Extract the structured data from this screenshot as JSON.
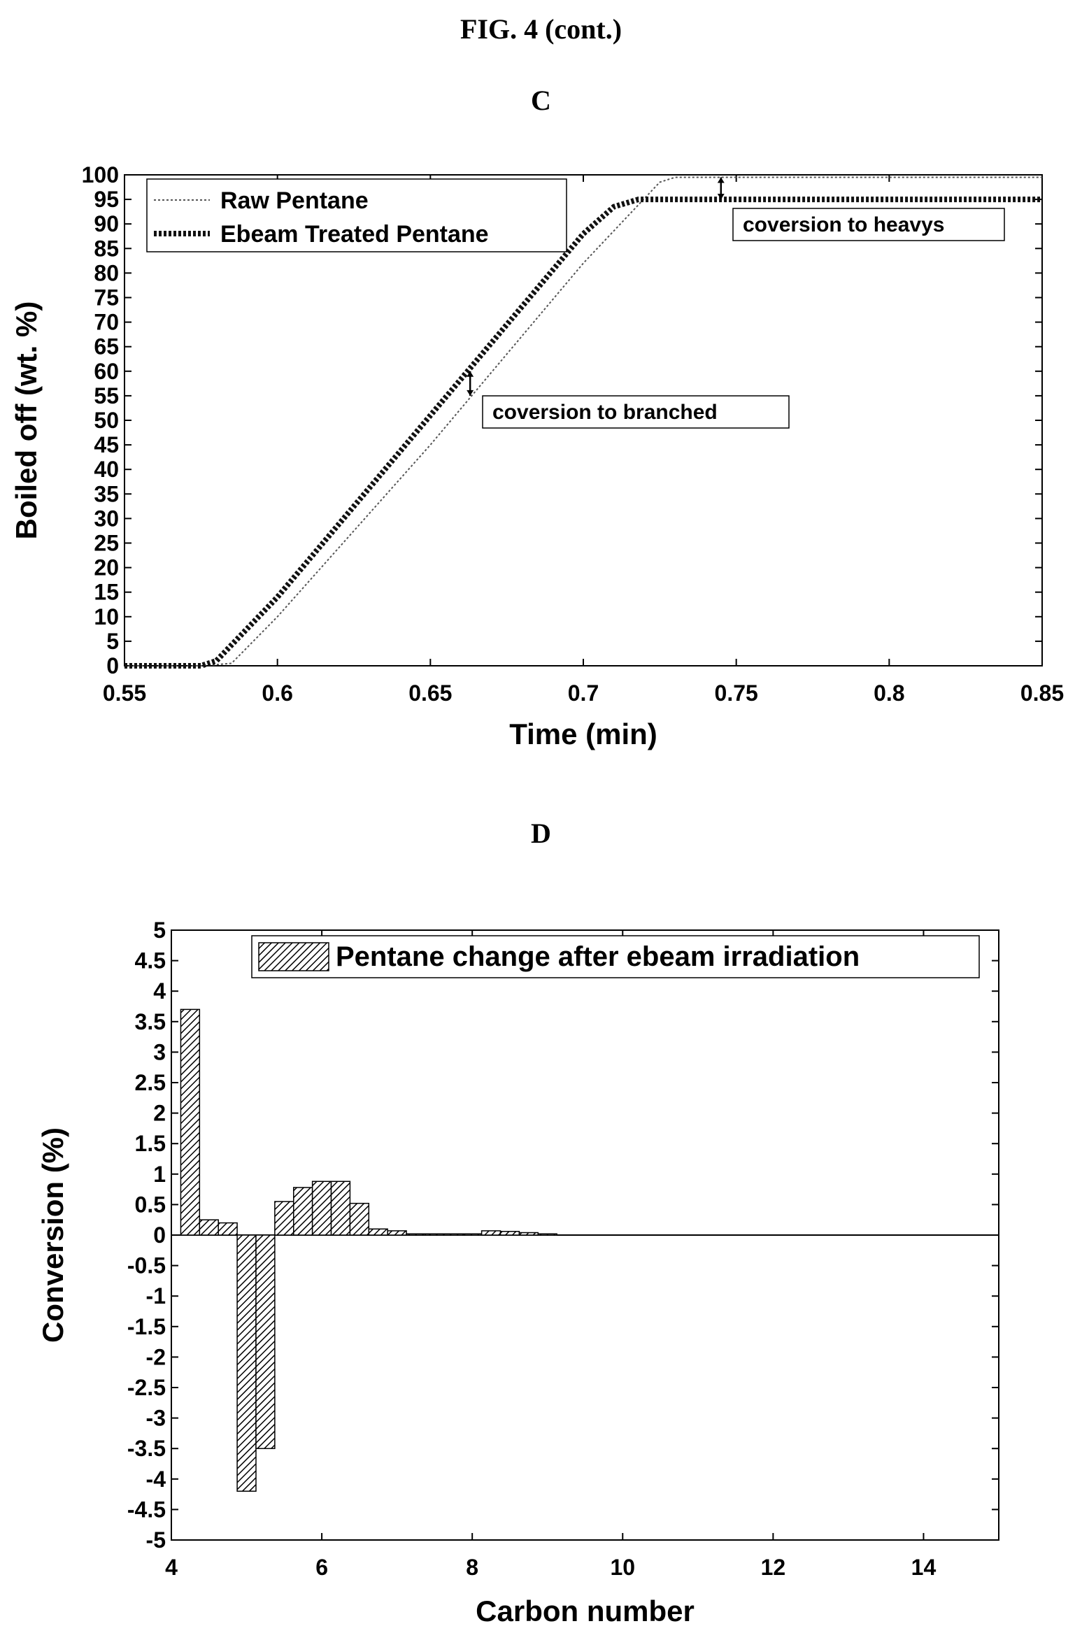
{
  "figure_title": "FIG. 4 (cont.)",
  "chart_data": [
    {
      "panel": "C",
      "type": "line",
      "xlabel": "Time (min)",
      "ylabel": "Boiled off (wt. %)",
      "xlim": [
        0.55,
        0.85
      ],
      "ylim": [
        0,
        100
      ],
      "xticks": [
        0.55,
        0.6,
        0.65,
        0.7,
        0.75,
        0.8,
        0.85
      ],
      "xtick_labels": [
        "0.55",
        "0.6",
        "0.65",
        "0.7",
        "0.75",
        "0.8",
        "0.85"
      ],
      "yticks": [
        0,
        5,
        10,
        15,
        20,
        25,
        30,
        35,
        40,
        45,
        50,
        55,
        60,
        65,
        70,
        75,
        80,
        85,
        90,
        95,
        100
      ],
      "ytick_labels": [
        "0",
        "5",
        "10",
        "15",
        "20",
        "25",
        "30",
        "35",
        "40",
        "45",
        "50",
        "55",
        "60",
        "65",
        "70",
        "75",
        "80",
        "85",
        "90",
        "95",
        "100"
      ],
      "legend_position": "top-left",
      "grid": false,
      "series": [
        {
          "name": "Raw Pentane",
          "style": "thin-dotted",
          "x": [
            0.55,
            0.575,
            0.585,
            0.6,
            0.65,
            0.7,
            0.725,
            0.73,
            0.85
          ],
          "y": [
            0,
            0,
            0.5,
            10,
            45,
            82,
            98.5,
            99.5,
            99.5
          ]
        },
        {
          "name": "Ebeam Treated Pentane",
          "style": "thick-dashed",
          "x": [
            0.55,
            0.575,
            0.58,
            0.6,
            0.65,
            0.7,
            0.71,
            0.718,
            0.85
          ],
          "y": [
            0,
            0,
            1,
            14,
            51,
            88,
            93.5,
            95,
            95
          ]
        }
      ],
      "annotations": [
        {
          "text": "coversion to heavys",
          "arrow_x": 0.745,
          "arrow_y": [
            95,
            99.5
          ]
        },
        {
          "text": "coversion to branched",
          "arrow_x": 0.663,
          "arrow_y": [
            55,
            60
          ]
        }
      ]
    },
    {
      "panel": "D",
      "type": "bar",
      "xlabel": "Carbon number",
      "ylabel": "Conversion (%)",
      "xlim": [
        4,
        15
      ],
      "ylim": [
        -5,
        5
      ],
      "xticks": [
        4,
        6,
        8,
        10,
        12,
        14
      ],
      "xtick_labels": [
        "4",
        "6",
        "8",
        "10",
        "12",
        "14"
      ],
      "yticks": [
        -5,
        -4.5,
        -4,
        -3.5,
        -3,
        -2.5,
        -2,
        -1.5,
        -1,
        -0.5,
        0,
        0.5,
        1,
        1.5,
        2,
        2.5,
        3,
        3.5,
        4,
        4.5,
        5
      ],
      "ytick_labels": [
        "-5",
        "-4.5",
        "-4",
        "-3.5",
        "-3",
        "-2.5",
        "-2",
        "-1.5",
        "-1",
        "-0.5",
        "0",
        "0.5",
        "1",
        "1.5",
        "2",
        "2.5",
        "3",
        "3.5",
        "4",
        "4.5",
        "5"
      ],
      "legend_position": "top-right",
      "grid": false,
      "series": [
        {
          "name": "Pentane change after ebeam irradiation",
          "x": [
            4.25,
            4.5,
            4.75,
            5.0,
            5.25,
            5.5,
            5.75,
            6.0,
            6.25,
            6.5,
            6.75,
            7.0,
            7.25,
            7.5,
            7.75,
            8.0,
            8.25,
            8.5,
            8.75,
            9.0
          ],
          "values": [
            3.7,
            0.25,
            0.2,
            -4.2,
            -3.5,
            0.55,
            0.78,
            0.88,
            0.88,
            0.52,
            0.1,
            0.07,
            0.02,
            0.02,
            0.02,
            0.02,
            0.07,
            0.06,
            0.04,
            0.02
          ]
        }
      ]
    }
  ]
}
